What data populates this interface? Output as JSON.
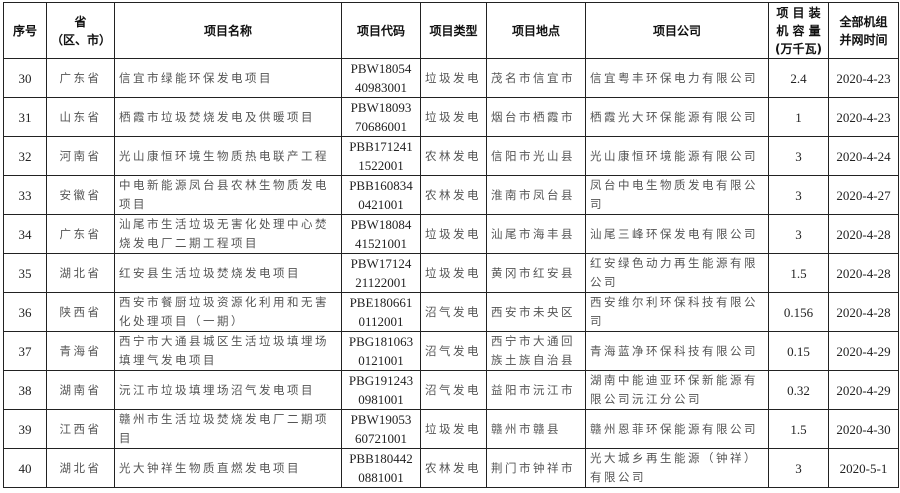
{
  "headers": [
    "序号",
    "省\n（区、市）",
    "项目名称",
    "项目代码",
    "项目类型",
    "项目地点",
    "项目公司",
    "项 目 装\n机 容 量\n(万千瓦)",
    "全部机组\n并网时间"
  ],
  "rows": [
    {
      "no": "30",
      "province": "广东省",
      "name": "信宜市绿能环保发电项目",
      "code": "PBW18054\n40983001",
      "type": "垃圾发电",
      "location": "茂名市信宜市",
      "company": "信宜粤丰环保电力有限公司",
      "capacity": "2.4",
      "date": "2020-4-23"
    },
    {
      "no": "31",
      "province": "山东省",
      "name": "栖霞市垃圾焚烧发电及供暖项目",
      "code": "PBW18093\n70686001",
      "type": "垃圾发电",
      "location": "烟台市栖霞市",
      "company": "栖霞光大环保能源有限公司",
      "capacity": "1",
      "date": "2020-4-23"
    },
    {
      "no": "32",
      "province": "河南省",
      "name": "光山康恒环境生物质热电联产工程",
      "code": "PBB171241\n1522001",
      "type": "农林发电",
      "location": "信阳市光山县",
      "company": "光山康恒环境能源有限公司",
      "capacity": "3",
      "date": "2020-4-24"
    },
    {
      "no": "33",
      "province": "安徽省",
      "name": "中电新能源凤台县农林生物质发电项目",
      "code": "PBB160834\n0421001",
      "type": "农林发电",
      "location": "淮南市凤台县",
      "company": "凤台中电生物质发电有限公司",
      "capacity": "3",
      "date": "2020-4-27"
    },
    {
      "no": "34",
      "province": "广东省",
      "name": "汕尾市生活垃圾无害化处理中心焚烧发电厂二期工程项目",
      "code": "PBW18084\n41521001",
      "type": "垃圾发电",
      "location": "汕尾市海丰县",
      "company": "汕尾三峰环保发电有限公司",
      "capacity": "3",
      "date": "2020-4-28"
    },
    {
      "no": "35",
      "province": "湖北省",
      "name": "红安县生活垃圾焚烧发电项目",
      "code": "PBW17124\n21122001",
      "type": "垃圾发电",
      "location": "黄冈市红安县",
      "company": "红安绿色动力再生能源有限公司",
      "capacity": "1.5",
      "date": "2020-4-28"
    },
    {
      "no": "36",
      "province": "陕西省",
      "name": "西安市餐厨垃圾资源化利用和无害化处理项目（一期）",
      "code": "PBE180661\n0112001",
      "type": "沼气发电",
      "location": "西安市未央区",
      "company": "西安维尔利环保科技有限公司",
      "capacity": "0.156",
      "date": "2020-4-28"
    },
    {
      "no": "37",
      "province": "青海省",
      "name": "西宁市大通县城区生活垃圾填埋场填埋气发电项目",
      "code": "PBG181063\n0121001",
      "type": "沼气发电",
      "location": "西宁市大通回族土族自治县",
      "company": "青海蓝净环保科技有限公司",
      "capacity": "0.15",
      "date": "2020-4-29"
    },
    {
      "no": "38",
      "province": "湖南省",
      "name": "沅江市垃圾填埋场沼气发电项目",
      "code": "PBG191243\n0981001",
      "type": "沼气发电",
      "location": "益阳市沅江市",
      "company": "湖南中能迪亚环保新能源有限公司沅江分公司",
      "capacity": "0.32",
      "date": "2020-4-29"
    },
    {
      "no": "39",
      "province": "江西省",
      "name": "赣州市生活垃圾焚烧发电厂二期项目",
      "code": "PBW19053\n60721001",
      "type": "垃圾发电",
      "location": "赣州市赣县",
      "company": "赣州恩菲环保能源有限公司",
      "capacity": "1.5",
      "date": "2020-4-30"
    },
    {
      "no": "40",
      "province": "湖北省",
      "name": "光大钟祥生物质直燃发电项目",
      "code": "PBB180442\n0881001",
      "type": "农林发电",
      "location": "荆门市钟祥市",
      "company": "光大城乡再生能源（钟祥）有限公司",
      "capacity": "3",
      "date": "2020-5-1"
    }
  ]
}
